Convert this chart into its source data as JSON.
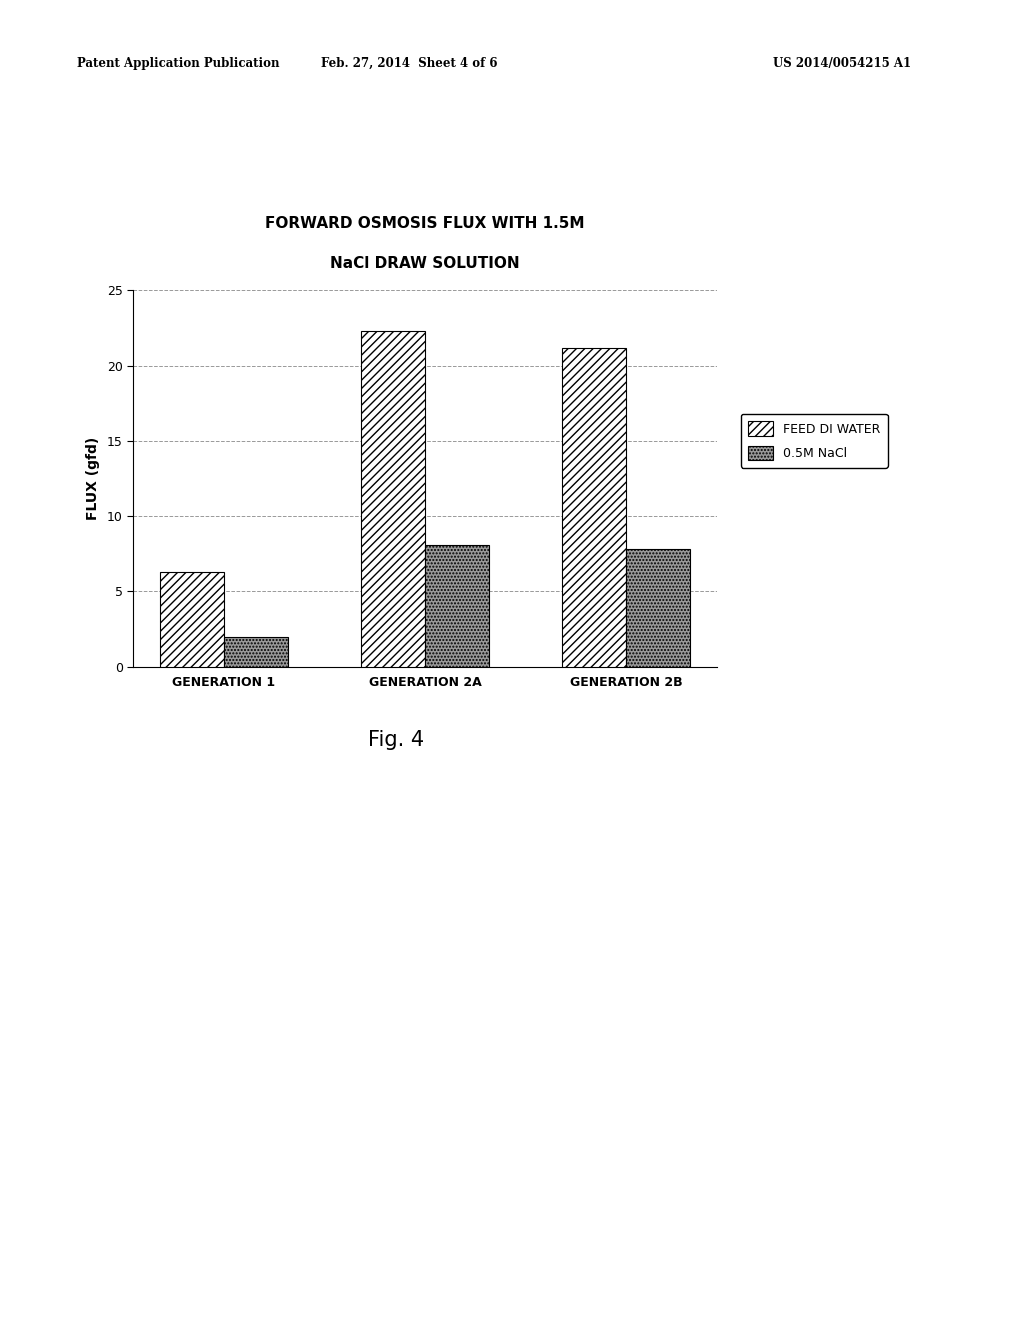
{
  "title_line1": "FORWARD OSMOSIS FLUX WITH 1.5M",
  "title_line2": "NaCl DRAW SOLUTION",
  "categories": [
    "GENERATION 1",
    "GENERATION 2A",
    "GENERATION 2B"
  ],
  "feed_di_water": [
    6.3,
    22.3,
    21.2
  ],
  "nacl_05m": [
    2.0,
    8.1,
    7.8
  ],
  "ylabel": "FLUX (gfd)",
  "ylim": [
    0,
    25
  ],
  "yticks": [
    0,
    5,
    10,
    15,
    20,
    25
  ],
  "legend_labels": [
    "FEED DI WATER",
    "0.5M NaCl"
  ],
  "fig_caption": "Fig. 4",
  "header_left": "Patent Application Publication",
  "header_center": "Feb. 27, 2014  Sheet 4 of 6",
  "header_right": "US 2014/0054215 A1",
  "bg_color": "#ffffff",
  "bar_width": 0.32,
  "hatch_di": "////",
  "hatch_nacl": ".....",
  "bar_color_di": "#ffffff",
  "bar_color_nacl": "#999999",
  "bar_edge_color": "#000000"
}
